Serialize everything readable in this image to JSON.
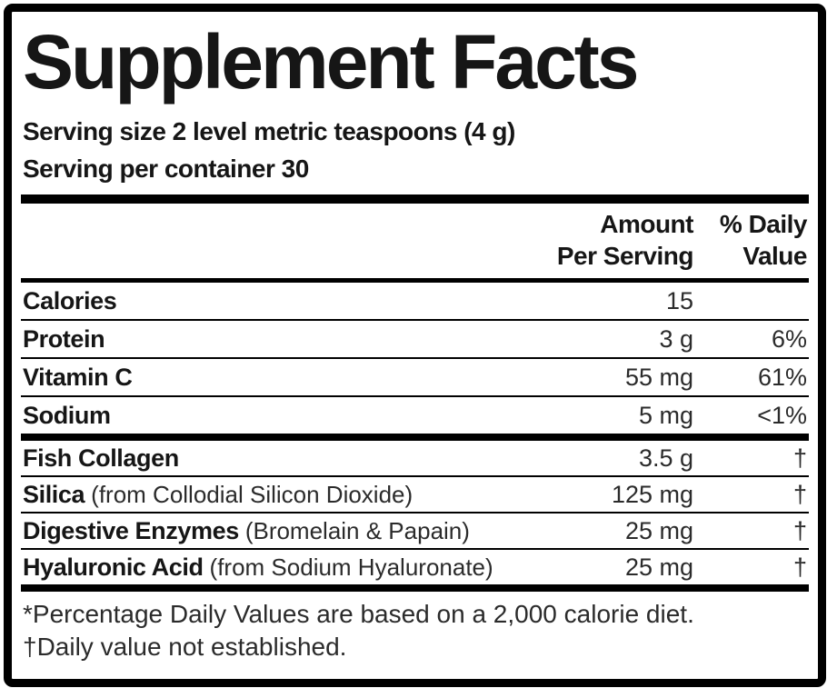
{
  "label": {
    "title": "Supplement Facts",
    "serving_size": "Serving size 2 level metric teaspoons (4 g)",
    "servings_per_container": "Serving per container 30",
    "columns": {
      "amount_line1": "Amount",
      "amount_line2": "Per Serving",
      "dv_line1": "% Daily",
      "dv_line2": "Value"
    },
    "rows_main": [
      {
        "name": "Calories",
        "qualifier": "",
        "amount": "15",
        "dv": ""
      },
      {
        "name": "Protein",
        "qualifier": "",
        "amount": "3 g",
        "dv": "6%"
      },
      {
        "name": "Vitamin C",
        "qualifier": "",
        "amount": "55 mg",
        "dv": "61%"
      },
      {
        "name": "Sodium",
        "qualifier": "",
        "amount": "5 mg",
        "dv": "<1%"
      }
    ],
    "rows_blend": [
      {
        "name": "Fish Collagen",
        "qualifier": "",
        "amount": "3.5 g",
        "dv": "†"
      },
      {
        "name": "Silica",
        "qualifier": "(from Collodial Silicon Dioxide)",
        "amount": "125 mg",
        "dv": "†"
      },
      {
        "name": "Digestive Enzymes",
        "qualifier": "(Bromelain & Papain)",
        "amount": "25 mg",
        "dv": "†"
      },
      {
        "name": "Hyaluronic Acid",
        "qualifier": "(from Sodium Hyaluronate)",
        "amount": "25 mg",
        "dv": "†"
      }
    ],
    "footnotes": [
      "*Percentage Daily Values are based on a 2,000 calorie diet.",
      "†Daily value not established."
    ],
    "colors": {
      "border": "#000000",
      "text": "#161616",
      "background": "#ffffff"
    }
  }
}
